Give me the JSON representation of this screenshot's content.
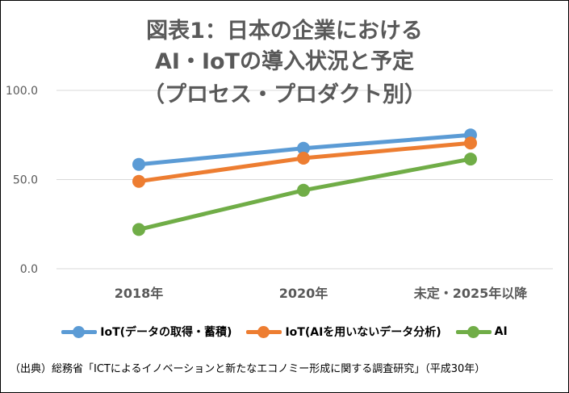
{
  "chart_data": {
    "type": "line",
    "title_lines": [
      "図表1：日本の企業における",
      "AI・IoTの導入状況と予定",
      "（プロセス・プロダクト別）"
    ],
    "categories": [
      "2018年",
      "2020年",
      "未定・2025年以降"
    ],
    "series": [
      {
        "name": "IoT(データの取得・蓄積)",
        "values": [
          58.5,
          67.5,
          75.0
        ],
        "color": "#5B9BD5"
      },
      {
        "name": "IoT(AIを用いないデータ分析)",
        "values": [
          49.0,
          62.0,
          70.5
        ],
        "color": "#ED7D31"
      },
      {
        "name": "AI",
        "values": [
          22.0,
          44.0,
          61.5
        ],
        "color": "#70AD47"
      }
    ],
    "y_ticks": [
      "100.0",
      "50.0",
      "0.0"
    ],
    "ylim": [
      0,
      100
    ],
    "grid": true,
    "legend_position": "bottom",
    "source": "（出典）総務省「ICTによるイノベーションと新たなエコノミー形成に関する調査研究」（平成30年）"
  }
}
